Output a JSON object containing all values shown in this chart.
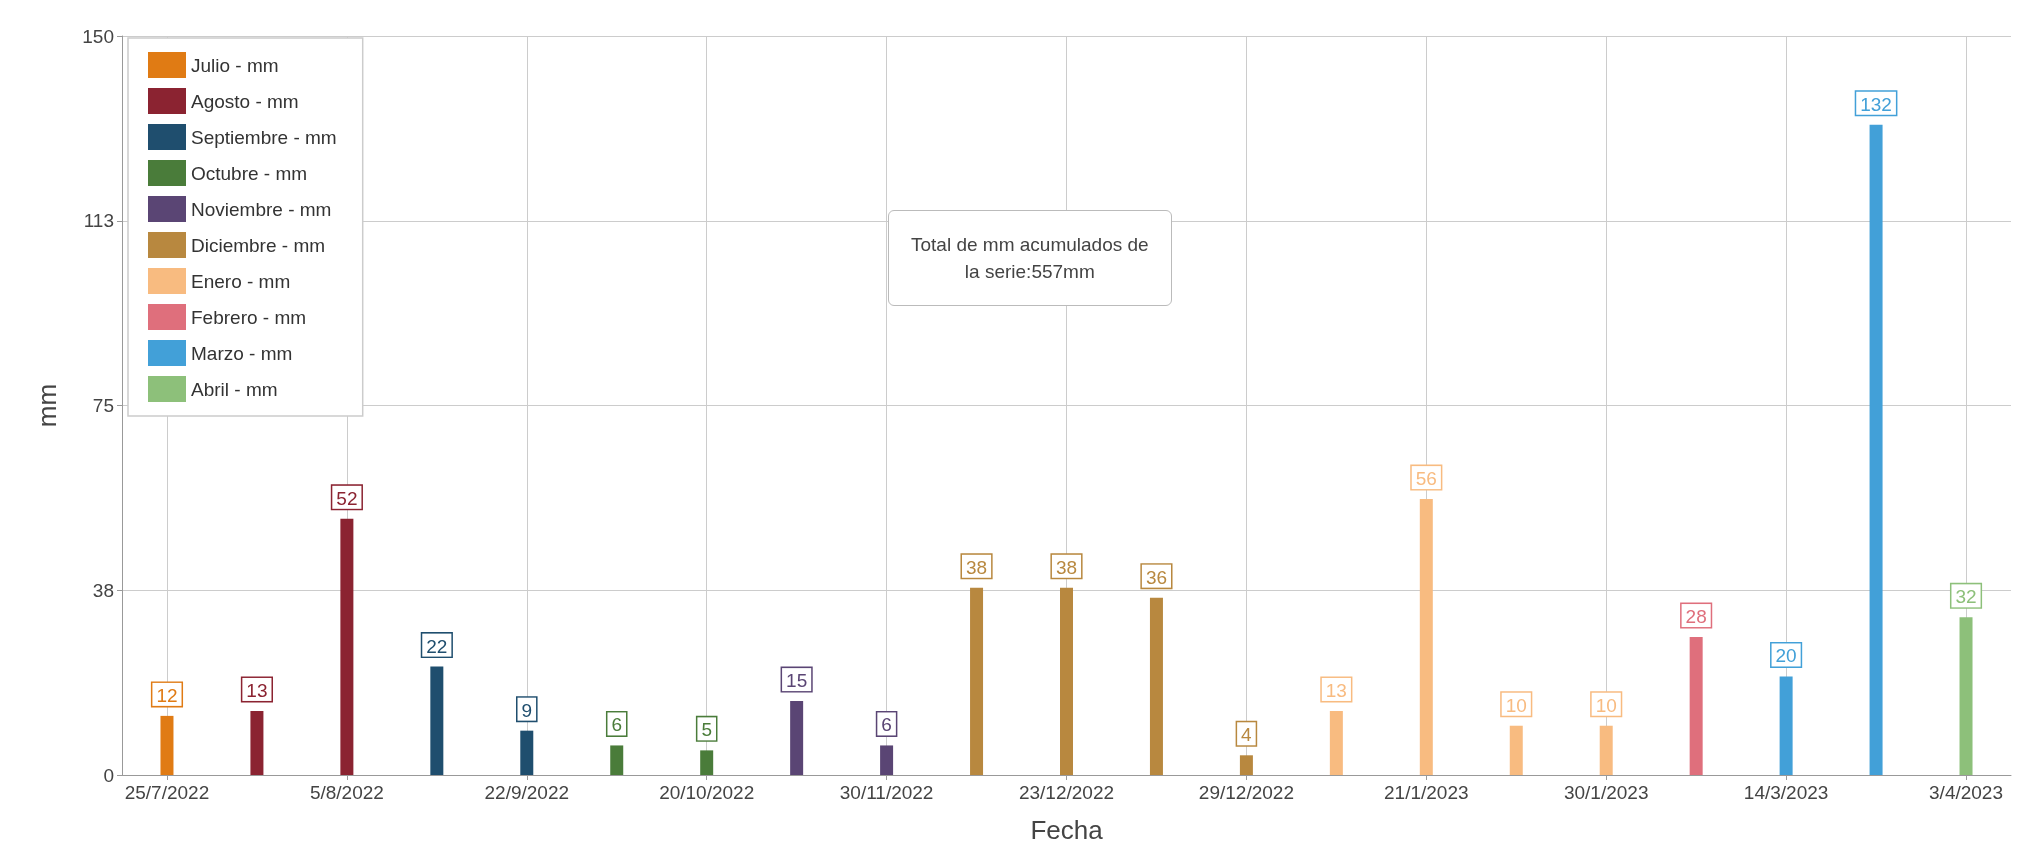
{
  "chart_data": {
    "type": "bar",
    "xlabel": "Fecha",
    "ylabel": "mm",
    "categories": [
      "25/7/2022",
      null,
      "5/8/2022",
      null,
      "22/9/2022",
      null,
      "20/10/2022",
      null,
      "30/11/2022",
      null,
      "23/12/2022",
      null,
      "29/12/2022",
      null,
      "21/1/2023",
      null,
      "30/1/2023",
      null,
      "14/3/2023",
      null,
      "3/4/2023"
    ],
    "series": [
      {
        "name": "Julio - mm",
        "color": "#e07b14",
        "values": [
          12,
          null,
          null,
          null,
          null,
          null,
          null,
          null,
          null,
          null,
          null,
          null,
          null,
          null,
          null,
          null,
          null,
          null,
          null,
          null,
          null
        ]
      },
      {
        "name": "Agosto - mm",
        "color": "#8b2331",
        "values": [
          null,
          13,
          52,
          null,
          null,
          null,
          null,
          null,
          null,
          null,
          null,
          null,
          null,
          null,
          null,
          null,
          null,
          null,
          null,
          null,
          null
        ]
      },
      {
        "name": "Septiembre - mm",
        "color": "#1f4e6e",
        "values": [
          null,
          null,
          null,
          22,
          9,
          null,
          null,
          null,
          null,
          null,
          null,
          null,
          null,
          null,
          null,
          null,
          null,
          null,
          null,
          null,
          null
        ]
      },
      {
        "name": "Octubre - mm",
        "color": "#4a7c3a",
        "values": [
          null,
          null,
          null,
          null,
          null,
          6,
          5,
          null,
          null,
          null,
          null,
          null,
          null,
          null,
          null,
          null,
          null,
          null,
          null,
          null,
          null
        ]
      },
      {
        "name": "Noviembre - mm",
        "color": "#5a4574",
        "values": [
          null,
          null,
          null,
          null,
          null,
          null,
          null,
          15,
          6,
          null,
          null,
          null,
          null,
          null,
          null,
          null,
          null,
          null,
          null,
          null,
          null
        ]
      },
      {
        "name": "Diciembre - mm",
        "color": "#b8883f",
        "values": [
          null,
          null,
          null,
          null,
          null,
          null,
          null,
          null,
          null,
          38,
          38,
          36,
          4,
          null,
          null,
          null,
          null,
          null,
          null,
          null,
          null
        ]
      },
      {
        "name": "Enero - mm",
        "color": "#f8bb80",
        "values": [
          null,
          null,
          null,
          null,
          null,
          null,
          null,
          null,
          null,
          null,
          null,
          null,
          null,
          13,
          56,
          10,
          10,
          null,
          null,
          null,
          null
        ]
      },
      {
        "name": "Febrero - mm",
        "color": "#df6f7c",
        "values": [
          null,
          null,
          null,
          null,
          null,
          null,
          null,
          null,
          null,
          null,
          null,
          null,
          null,
          null,
          null,
          null,
          null,
          28,
          null,
          null,
          null
        ]
      },
      {
        "name": "Marzo - mm",
        "color": "#42a0d8",
        "values": [
          null,
          null,
          null,
          null,
          null,
          null,
          null,
          null,
          null,
          null,
          null,
          null,
          null,
          null,
          null,
          null,
          null,
          null,
          20,
          132,
          null
        ]
      },
      {
        "name": "Abril - mm",
        "color": "#8dc07a",
        "values": [
          null,
          null,
          null,
          null,
          null,
          null,
          null,
          null,
          null,
          null,
          null,
          null,
          null,
          null,
          null,
          null,
          null,
          null,
          null,
          null,
          32
        ]
      }
    ],
    "ylim": [
      0,
      150
    ],
    "yticks": [
      0,
      {
        "value": 37.5,
        "label": "38"
      },
      75,
      {
        "value": 112.5,
        "label": "113"
      },
      150
    ],
    "grid": true,
    "legend": "top left",
    "data_labels": true,
    "annotations": [
      "Total de mm acumulados de\nla serie:557mm"
    ]
  }
}
